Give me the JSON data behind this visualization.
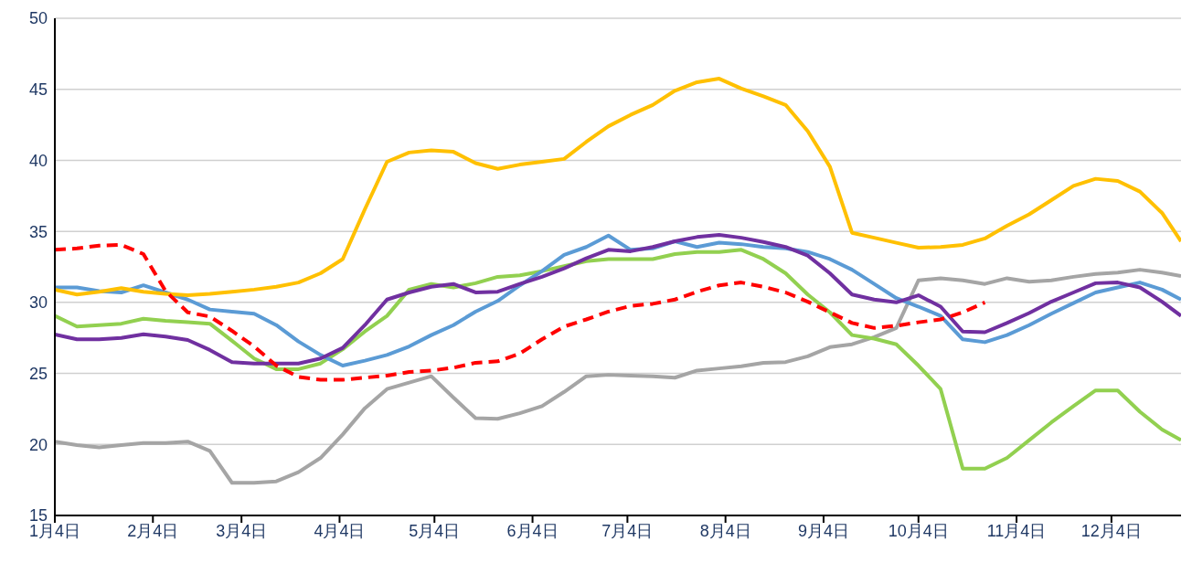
{
  "chart_data": {
    "type": "line",
    "grid": "y",
    "x": [
      "--01-04",
      "--01-11",
      "--01-18",
      "--01-25",
      "--02-01",
      "--02-08",
      "--02-15",
      "--02-22",
      "--03-01",
      "--03-08",
      "--03-15",
      "--03-22",
      "--03-29",
      "--04-05",
      "--04-12",
      "--04-19",
      "--04-26",
      "--05-03",
      "--05-10",
      "--05-17",
      "--05-24",
      "--05-31",
      "--06-07",
      "--06-14",
      "--06-21",
      "--06-28",
      "--07-05",
      "--07-12",
      "--07-19",
      "--07-26",
      "--08-02",
      "--08-09",
      "--08-16",
      "--08-23",
      "--08-30",
      "--09-06",
      "--09-13",
      "--09-20",
      "--09-27",
      "--10-04",
      "--10-11",
      "--10-18",
      "--10-25",
      "--11-01",
      "--11-08",
      "--11-15",
      "--11-22",
      "--11-29",
      "--12-06",
      "--12-13",
      "--12-20",
      "--12-26"
    ],
    "xlim": [
      "--01-04",
      "--12-26"
    ],
    "xticks": [
      {
        "value": "--01-04",
        "label": "1月4日"
      },
      {
        "value": "--02-04",
        "label": "2月4日"
      },
      {
        "value": "--03-04",
        "label": "3月4日"
      },
      {
        "value": "--04-04",
        "label": "4月4日"
      },
      {
        "value": "--05-04",
        "label": "5月4日"
      },
      {
        "value": "--06-04",
        "label": "6月4日"
      },
      {
        "value": "--07-04",
        "label": "7月4日"
      },
      {
        "value": "--08-04",
        "label": "8月4日"
      },
      {
        "value": "--09-04",
        "label": "9月4日"
      },
      {
        "value": "--10-04",
        "label": "10月4日"
      },
      {
        "value": "--11-04",
        "label": "11月4日"
      },
      {
        "value": "--12-04",
        "label": "12月4日"
      }
    ],
    "ylim": [
      15,
      50
    ],
    "yticks": [
      15,
      20,
      25,
      30,
      35,
      40,
      45,
      50
    ],
    "series": [
      {
        "color": "#a5a5a5",
        "values": [
          20.2,
          19.95,
          19.8,
          19.95,
          20.1,
          20.1,
          20.2,
          19.55,
          17.3,
          17.3,
          17.4,
          18.05,
          19.05,
          20.7,
          22.55,
          23.9,
          24.35,
          24.8,
          23.3,
          21.85,
          21.8,
          22.2,
          22.7,
          23.7,
          24.8,
          24.9,
          24.85,
          24.8,
          24.7,
          25.2,
          25.35,
          25.5,
          25.75,
          25.8,
          26.2,
          26.85,
          27.05,
          27.55,
          28.2,
          31.55,
          31.7,
          31.55,
          31.3,
          31.7,
          31.45,
          31.55,
          31.8,
          32.0,
          32.1,
          32.3,
          32.1,
          31.85
        ]
      },
      {
        "color": "#92d050",
        "values": [
          29.05,
          28.3,
          28.4,
          28.5,
          28.85,
          28.7,
          28.6,
          28.5,
          27.3,
          26.05,
          25.3,
          25.3,
          25.7,
          26.7,
          27.95,
          29.05,
          30.9,
          31.3,
          31.05,
          31.35,
          31.8,
          31.9,
          32.2,
          32.55,
          32.9,
          33.05,
          33.05,
          33.05,
          33.4,
          33.55,
          33.55,
          33.7,
          33.05,
          32.05,
          30.55,
          29.3,
          27.7,
          27.45,
          27.05,
          25.55,
          23.9,
          18.3,
          18.3,
          19.05,
          20.3,
          21.55,
          22.7,
          23.8,
          23.8,
          22.3,
          21.05,
          20.3
        ]
      },
      {
        "color": "#5b9bd5",
        "values": [
          31.05,
          31.05,
          30.8,
          30.7,
          31.2,
          30.7,
          30.2,
          29.5,
          29.35,
          29.2,
          28.4,
          27.25,
          26.3,
          25.55,
          25.9,
          26.3,
          26.9,
          27.7,
          28.4,
          29.35,
          30.1,
          31.2,
          32.2,
          33.35,
          33.9,
          34.7,
          33.7,
          33.8,
          34.3,
          33.9,
          34.2,
          34.1,
          33.9,
          33.8,
          33.55,
          33.05,
          32.3,
          31.3,
          30.3,
          29.7,
          29.05,
          27.4,
          27.2,
          27.7,
          28.4,
          29.2,
          29.95,
          30.7,
          31.05,
          31.4,
          30.9,
          30.2
        ]
      },
      {
        "color": "#7030a0",
        "values": [
          27.75,
          27.4,
          27.4,
          27.5,
          27.75,
          27.6,
          27.35,
          26.65,
          25.8,
          25.7,
          25.7,
          25.7,
          26.05,
          26.8,
          28.4,
          30.2,
          30.7,
          31.1,
          31.3,
          30.7,
          30.75,
          31.3,
          31.8,
          32.4,
          33.1,
          33.7,
          33.6,
          33.9,
          34.3,
          34.6,
          34.75,
          34.55,
          34.25,
          33.9,
          33.3,
          32.05,
          30.55,
          30.2,
          30.0,
          30.5,
          29.7,
          27.95,
          27.9,
          28.55,
          29.25,
          30.05,
          30.7,
          31.35,
          31.4,
          31.05,
          30.05,
          29.05
        ]
      },
      {
        "color": "#ffc000",
        "values": [
          30.9,
          30.55,
          30.75,
          31.0,
          30.75,
          30.6,
          30.5,
          30.6,
          30.75,
          30.9,
          31.1,
          31.4,
          32.05,
          33.05,
          36.55,
          39.9,
          40.55,
          40.7,
          40.6,
          39.8,
          39.4,
          39.7,
          39.9,
          40.1,
          41.3,
          42.4,
          43.2,
          43.9,
          44.9,
          45.5,
          45.75,
          45.05,
          44.5,
          43.9,
          42.05,
          39.55,
          34.9,
          34.55,
          34.2,
          33.85,
          33.9,
          34.05,
          34.5,
          35.4,
          36.2,
          37.2,
          38.2,
          38.7,
          38.55,
          37.8,
          36.3,
          34.3
        ]
      },
      {
        "color": "#ff0000",
        "line_style": "dashed",
        "values": [
          33.7,
          33.8,
          34.0,
          34.05,
          33.4,
          30.8,
          29.3,
          29.0,
          28.0,
          26.9,
          25.55,
          24.75,
          24.55,
          24.55,
          24.7,
          24.85,
          25.1,
          25.2,
          25.4,
          25.75,
          25.85,
          26.4,
          27.4,
          28.3,
          28.8,
          29.35,
          29.75,
          29.9,
          30.2,
          30.75,
          31.2,
          31.4,
          31.1,
          30.7,
          30.05,
          29.3,
          28.55,
          28.2,
          28.35,
          28.6,
          28.8,
          29.3,
          30.0,
          null,
          null,
          null,
          null,
          null,
          null,
          null,
          null,
          null
        ]
      }
    ]
  }
}
